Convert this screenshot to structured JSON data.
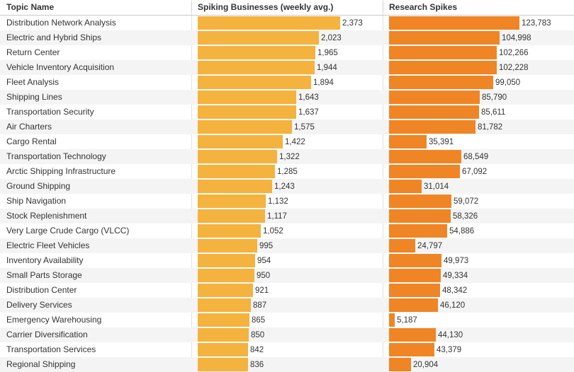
{
  "chart_data": {
    "type": "table",
    "columns": [
      "Topic Name",
      "Spiking Businesses (weekly avg.)",
      "Research Spikes"
    ],
    "colors": {
      "spiking": "#f4b23e",
      "research": "#ef8525"
    },
    "rows": [
      {
        "topic": "Distribution Network Analysis",
        "spiking": 2373,
        "spiking_label": "2,373",
        "research": 123783,
        "research_label": "123,783"
      },
      {
        "topic": "Electric and Hybrid Ships",
        "spiking": 2023,
        "spiking_label": "2,023",
        "research": 104998,
        "research_label": "104,998"
      },
      {
        "topic": "Return Center",
        "spiking": 1965,
        "spiking_label": "1,965",
        "research": 102266,
        "research_label": "102,266"
      },
      {
        "topic": "Vehicle Inventory Acquisition",
        "spiking": 1944,
        "spiking_label": "1,944",
        "research": 102228,
        "research_label": "102,228"
      },
      {
        "topic": "Fleet Analysis",
        "spiking": 1894,
        "spiking_label": "1,894",
        "research": 99050,
        "research_label": "99,050"
      },
      {
        "topic": "Shipping Lines",
        "spiking": 1643,
        "spiking_label": "1,643",
        "research": 85790,
        "research_label": "85,790"
      },
      {
        "topic": "Transportation Security",
        "spiking": 1637,
        "spiking_label": "1,637",
        "research": 85611,
        "research_label": "85,611"
      },
      {
        "topic": "Air Charters",
        "spiking": 1575,
        "spiking_label": "1,575",
        "research": 81782,
        "research_label": "81,782"
      },
      {
        "topic": "Cargo Rental",
        "spiking": 1422,
        "spiking_label": "1,422",
        "research": 35391,
        "research_label": "35,391"
      },
      {
        "topic": "Transportation Technology",
        "spiking": 1322,
        "spiking_label": "1,322",
        "research": 68549,
        "research_label": "68,549"
      },
      {
        "topic": "Arctic Shipping Infrastructure",
        "spiking": 1285,
        "spiking_label": "1,285",
        "research": 67092,
        "research_label": "67,092"
      },
      {
        "topic": "Ground Shipping",
        "spiking": 1243,
        "spiking_label": "1,243",
        "research": 31014,
        "research_label": "31,014"
      },
      {
        "topic": "Ship Navigation",
        "spiking": 1132,
        "spiking_label": "1,132",
        "research": 59072,
        "research_label": "59,072"
      },
      {
        "topic": "Stock Replenishment",
        "spiking": 1117,
        "spiking_label": "1,117",
        "research": 58326,
        "research_label": "58,326"
      },
      {
        "topic": "Very Large Crude Cargo (VLCC)",
        "spiking": 1052,
        "spiking_label": "1,052",
        "research": 54886,
        "research_label": "54,886"
      },
      {
        "topic": "Electric Fleet Vehicles",
        "spiking": 995,
        "spiking_label": "995",
        "research": 24797,
        "research_label": "24,797"
      },
      {
        "topic": "Inventory Availability",
        "spiking": 954,
        "spiking_label": "954",
        "research": 49973,
        "research_label": "49,973"
      },
      {
        "topic": "Small Parts Storage",
        "spiking": 950,
        "spiking_label": "950",
        "research": 49334,
        "research_label": "49,334"
      },
      {
        "topic": "Distribution Center",
        "spiking": 921,
        "spiking_label": "921",
        "research": 48342,
        "research_label": "48,342"
      },
      {
        "topic": "Delivery Services",
        "spiking": 887,
        "spiking_label": "887",
        "research": 46120,
        "research_label": "46,120"
      },
      {
        "topic": "Emergency Warehousing",
        "spiking": 865,
        "spiking_label": "865",
        "research": 5187,
        "research_label": "5,187"
      },
      {
        "topic": "Carrier Diversification",
        "spiking": 850,
        "spiking_label": "850",
        "research": 44130,
        "research_label": "44,130"
      },
      {
        "topic": "Transportation Services",
        "spiking": 842,
        "spiking_label": "842",
        "research": 43379,
        "research_label": "43,379"
      },
      {
        "topic": "Regional Shipping",
        "spiking": 836,
        "spiking_label": "836",
        "research": 20904,
        "research_label": "20,904"
      }
    ]
  }
}
